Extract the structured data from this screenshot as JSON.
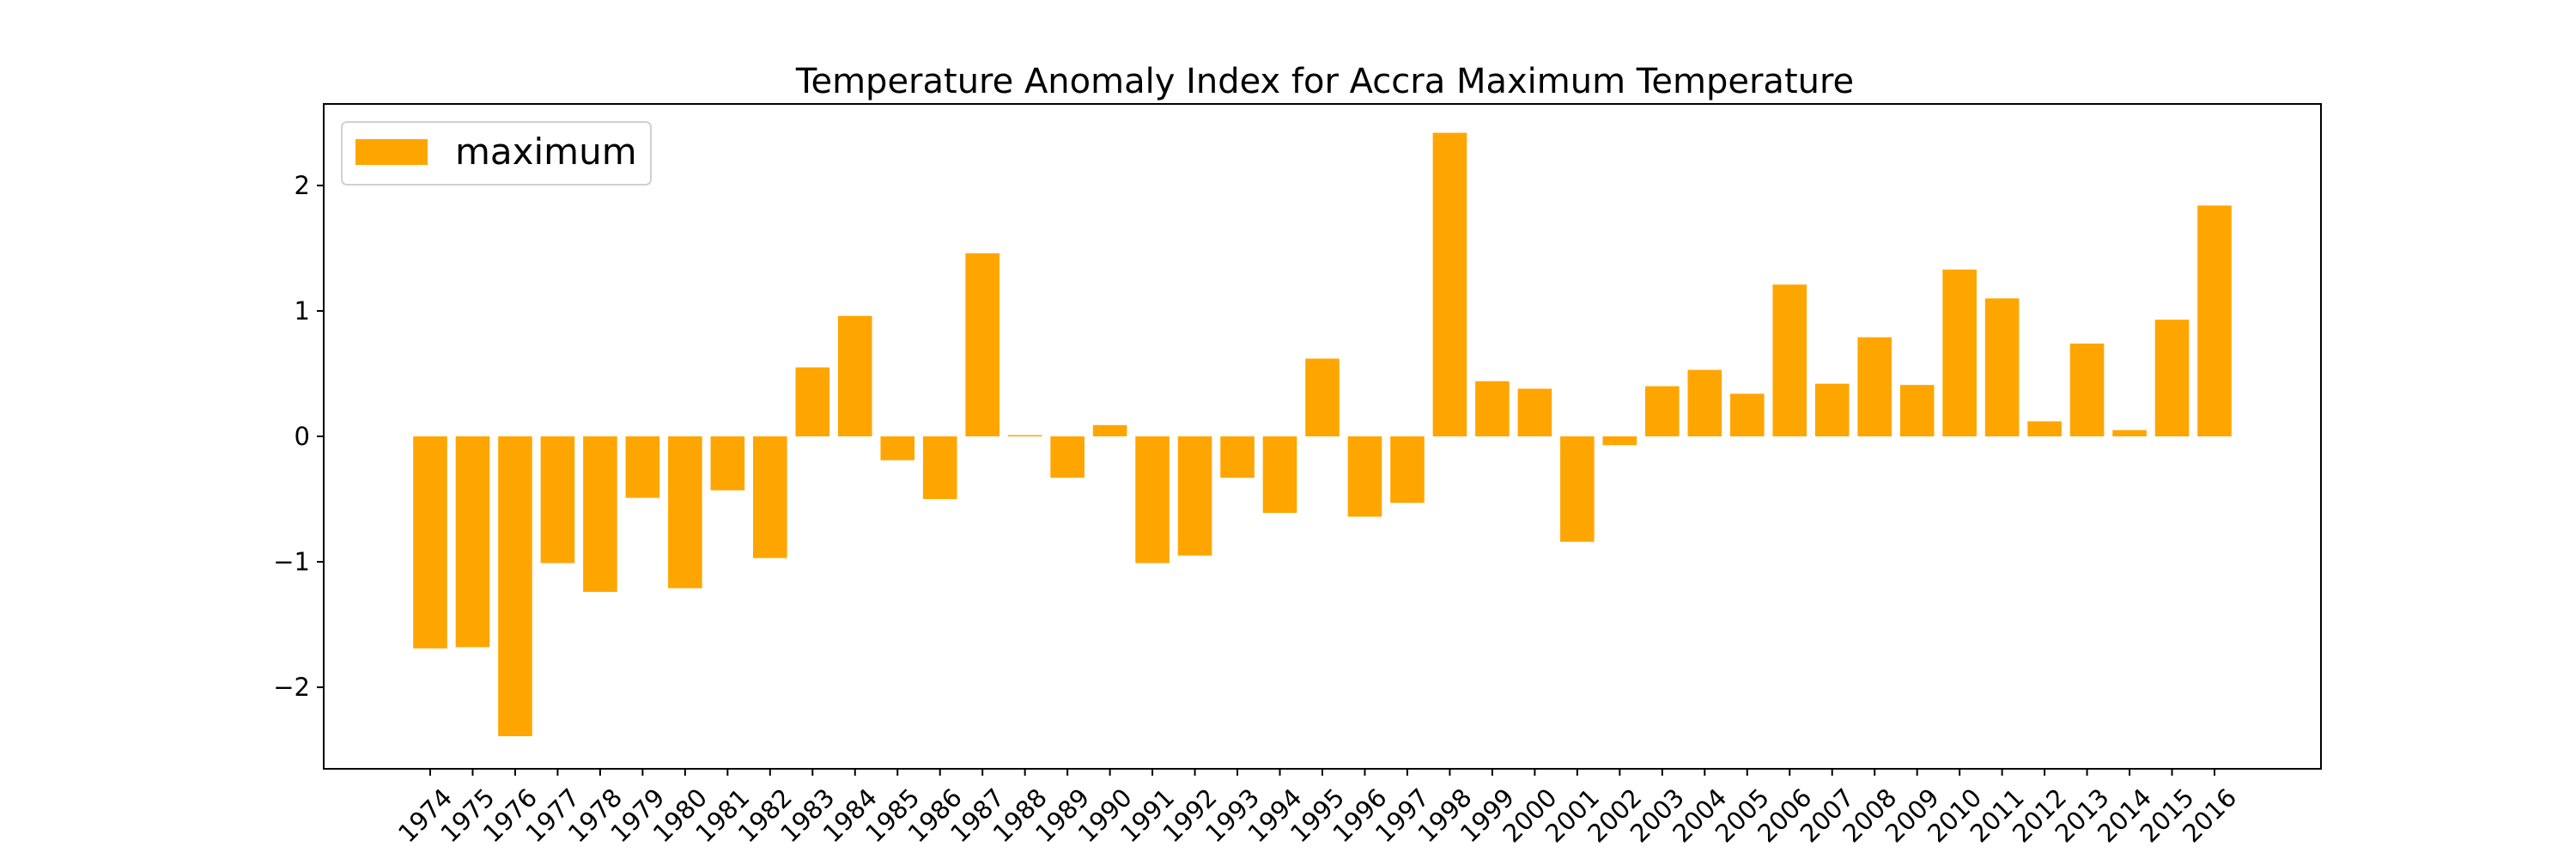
{
  "chart_data": {
    "type": "bar",
    "title": "Temperature Anomaly Index for Accra Maximum Temperature",
    "xlabel": "",
    "ylabel": "",
    "ylim": [
      -2.65,
      2.65
    ],
    "yticks": [
      -2,
      -1,
      0,
      1,
      2
    ],
    "ytick_labels": [
      "−2",
      "−1",
      "0",
      "1",
      "2"
    ],
    "legend_position": "top-left",
    "grid": false,
    "categories": [
      "1974",
      "1975",
      "1976",
      "1977",
      "1978",
      "1979",
      "1980",
      "1981",
      "1982",
      "1983",
      "1984",
      "1985",
      "1986",
      "1987",
      "1988",
      "1989",
      "1990",
      "1991",
      "1992",
      "1993",
      "1994",
      "1995",
      "1996",
      "1997",
      "1998",
      "1999",
      "2000",
      "2001",
      "2002",
      "2003",
      "2004",
      "2005",
      "2006",
      "2007",
      "2008",
      "2009",
      "2010",
      "2011",
      "2012",
      "2013",
      "2014",
      "2015",
      "2016"
    ],
    "series": [
      {
        "name": "maximum",
        "color": "#ffa500",
        "values": [
          -1.69,
          -1.68,
          -2.39,
          -1.01,
          -1.24,
          -0.49,
          -1.21,
          -0.43,
          -0.97,
          0.55,
          0.96,
          -0.19,
          -0.5,
          1.46,
          0.01,
          -0.33,
          0.09,
          -1.01,
          -0.95,
          -0.33,
          -0.61,
          0.62,
          -0.64,
          -0.53,
          2.42,
          0.44,
          0.38,
          -0.84,
          -0.07,
          0.4,
          0.53,
          0.34,
          1.21,
          0.42,
          0.79,
          0.41,
          1.33,
          1.1,
          0.12,
          0.74,
          0.05,
          0.93,
          1.84
        ]
      }
    ]
  }
}
